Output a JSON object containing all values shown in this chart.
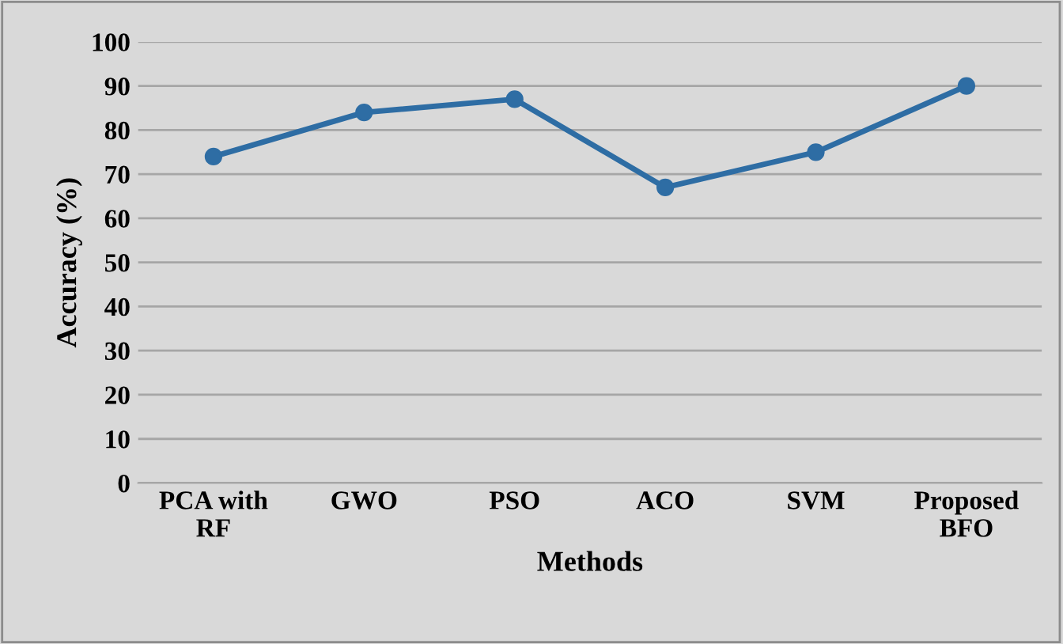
{
  "chart_data": {
    "type": "line",
    "xlabel": "Methods",
    "ylabel": "Accuracy (%)",
    "categories": [
      "PCA with\nRF",
      "GWO",
      "PSO",
      "ACO",
      "SVM",
      "Proposed\nBFO"
    ],
    "series": [
      {
        "color": "#2e6da4",
        "values": [
          74,
          84,
          87,
          67,
          75,
          90
        ]
      }
    ],
    "ylim": [
      0,
      100
    ],
    "yticks": [
      0,
      10,
      20,
      30,
      40,
      50,
      60,
      70,
      80,
      90,
      100
    ],
    "grid": "y",
    "marker": "circle",
    "line_style": "solid"
  }
}
